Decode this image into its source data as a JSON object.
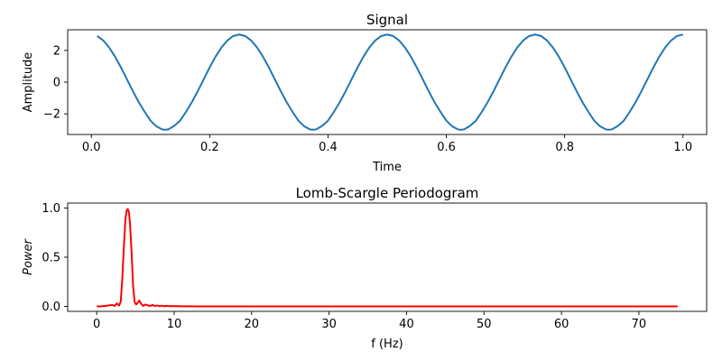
{
  "colors": {
    "signal_line": "#1f77b4",
    "periodogram_line": "#ff0000"
  },
  "chart_data": [
    {
      "type": "line",
      "title": "Signal",
      "xlabel": "Time",
      "ylabel": "Amplitude",
      "xlim": [
        -0.04,
        1.04
      ],
      "ylim": [
        -3.3,
        3.3
      ],
      "xticks": [
        0.0,
        0.2,
        0.4,
        0.6,
        0.8,
        1.0
      ],
      "xtick_labels": [
        "0.0",
        "0.2",
        "0.4",
        "0.6",
        "0.8",
        "1.0"
      ],
      "yticks": [
        -2,
        0,
        2
      ],
      "ytick_labels": [
        "−2",
        "0",
        "2"
      ],
      "grid": false,
      "series": [
        {
          "color": "#1f77b4",
          "x": [
            0.01,
            0.02,
            0.03,
            0.04,
            0.05,
            0.06,
            0.07,
            0.08,
            0.09,
            0.1,
            0.11,
            0.12,
            0.125,
            0.13,
            0.14,
            0.15,
            0.16,
            0.17,
            0.18,
            0.19,
            0.2,
            0.21,
            0.22,
            0.23,
            0.24,
            0.25,
            0.26,
            0.27,
            0.28,
            0.29,
            0.3,
            0.31,
            0.32,
            0.33,
            0.34,
            0.35,
            0.36,
            0.37,
            0.375,
            0.38,
            0.39,
            0.4,
            0.41,
            0.42,
            0.43,
            0.44,
            0.45,
            0.46,
            0.47,
            0.48,
            0.49,
            0.5,
            0.51,
            0.52,
            0.53,
            0.54,
            0.55,
            0.56,
            0.57,
            0.58,
            0.59,
            0.6,
            0.61,
            0.62,
            0.625,
            0.63,
            0.64,
            0.65,
            0.66,
            0.67,
            0.68,
            0.69,
            0.7,
            0.71,
            0.72,
            0.73,
            0.74,
            0.75,
            0.76,
            0.77,
            0.78,
            0.79,
            0.8,
            0.81,
            0.82,
            0.83,
            0.84,
            0.85,
            0.86,
            0.87,
            0.875,
            0.88,
            0.89,
            0.9,
            0.91,
            0.92,
            0.93,
            0.94,
            0.95,
            0.96,
            0.97,
            0.98,
            0.99,
            1.0
          ],
          "y": [
            2.91,
            2.63,
            2.19,
            1.61,
            0.93,
            0.19,
            -0.56,
            -1.26,
            -1.87,
            -2.43,
            -2.79,
            -2.99,
            -3.0,
            -2.98,
            -2.76,
            -2.43,
            -1.87,
            -1.26,
            -0.56,
            0.19,
            0.93,
            1.61,
            2.19,
            2.63,
            2.91,
            3.0,
            2.91,
            2.63,
            2.19,
            1.61,
            0.93,
            0.19,
            -0.56,
            -1.26,
            -1.87,
            -2.43,
            -2.79,
            -2.99,
            -3.0,
            -2.98,
            -2.76,
            -2.43,
            -1.87,
            -1.26,
            -0.56,
            0.19,
            0.93,
            1.61,
            2.19,
            2.63,
            2.91,
            3.0,
            2.91,
            2.63,
            2.19,
            1.61,
            0.93,
            0.19,
            -0.56,
            -1.26,
            -1.87,
            -2.43,
            -2.79,
            -2.99,
            -3.0,
            -2.98,
            -2.76,
            -2.43,
            -1.87,
            -1.26,
            -0.56,
            0.19,
            0.93,
            1.61,
            2.19,
            2.63,
            2.91,
            3.0,
            2.91,
            2.63,
            2.19,
            1.61,
            0.93,
            0.19,
            -0.56,
            -1.26,
            -1.87,
            -2.43,
            -2.79,
            -2.99,
            -3.0,
            -2.98,
            -2.76,
            -2.43,
            -1.87,
            -1.26,
            -0.56,
            0.19,
            0.93,
            1.61,
            2.19,
            2.63,
            2.91,
            3.0
          ]
        }
      ]
    },
    {
      "type": "line",
      "title": "Lomb-Scargle Periodogram",
      "xlabel": "f (Hz)",
      "ylabel": "Power",
      "xlim": [
        -3.75,
        78.75
      ],
      "ylim": [
        -0.05,
        1.05
      ],
      "xticks": [
        0,
        10,
        20,
        30,
        40,
        50,
        60,
        70
      ],
      "xtick_labels": [
        "0",
        "10",
        "20",
        "30",
        "40",
        "50",
        "60",
        "70"
      ],
      "yticks": [
        0.0,
        0.5,
        1.0
      ],
      "ytick_labels": [
        "0.0",
        "0.5",
        "1.0"
      ],
      "grid": false,
      "series": [
        {
          "color": "#ff0000",
          "x": [
            0,
            0.5,
            1.0,
            1.5,
            2.0,
            2.3,
            2.6,
            2.9,
            3.1,
            3.3,
            3.5,
            3.7,
            3.85,
            4.0,
            4.15,
            4.3,
            4.5,
            4.7,
            4.9,
            5.1,
            5.3,
            5.5,
            5.7,
            6.0,
            6.3,
            6.6,
            6.9,
            7.2,
            7.5,
            7.8,
            8.1,
            8.4,
            8.7,
            9.0,
            9.5,
            10,
            11,
            12,
            13,
            14,
            15,
            20,
            30,
            40,
            50,
            60,
            70,
            75
          ],
          "y": [
            0.0,
            0.0,
            0.005,
            0.01,
            0.015,
            0.005,
            0.03,
            0.01,
            0.05,
            0.28,
            0.6,
            0.88,
            0.97,
            0.99,
            0.96,
            0.84,
            0.55,
            0.2,
            0.04,
            0.02,
            0.04,
            0.06,
            0.03,
            0.005,
            0.02,
            0.01,
            0.005,
            0.015,
            0.005,
            0.01,
            0.003,
            0.008,
            0.002,
            0.006,
            0.003,
            0.004,
            0.002,
            0.002,
            0.001,
            0.001,
            0.001,
            0.0,
            0.0,
            0.0,
            0.0,
            0.0,
            0.0,
            0.0
          ]
        }
      ]
    }
  ]
}
